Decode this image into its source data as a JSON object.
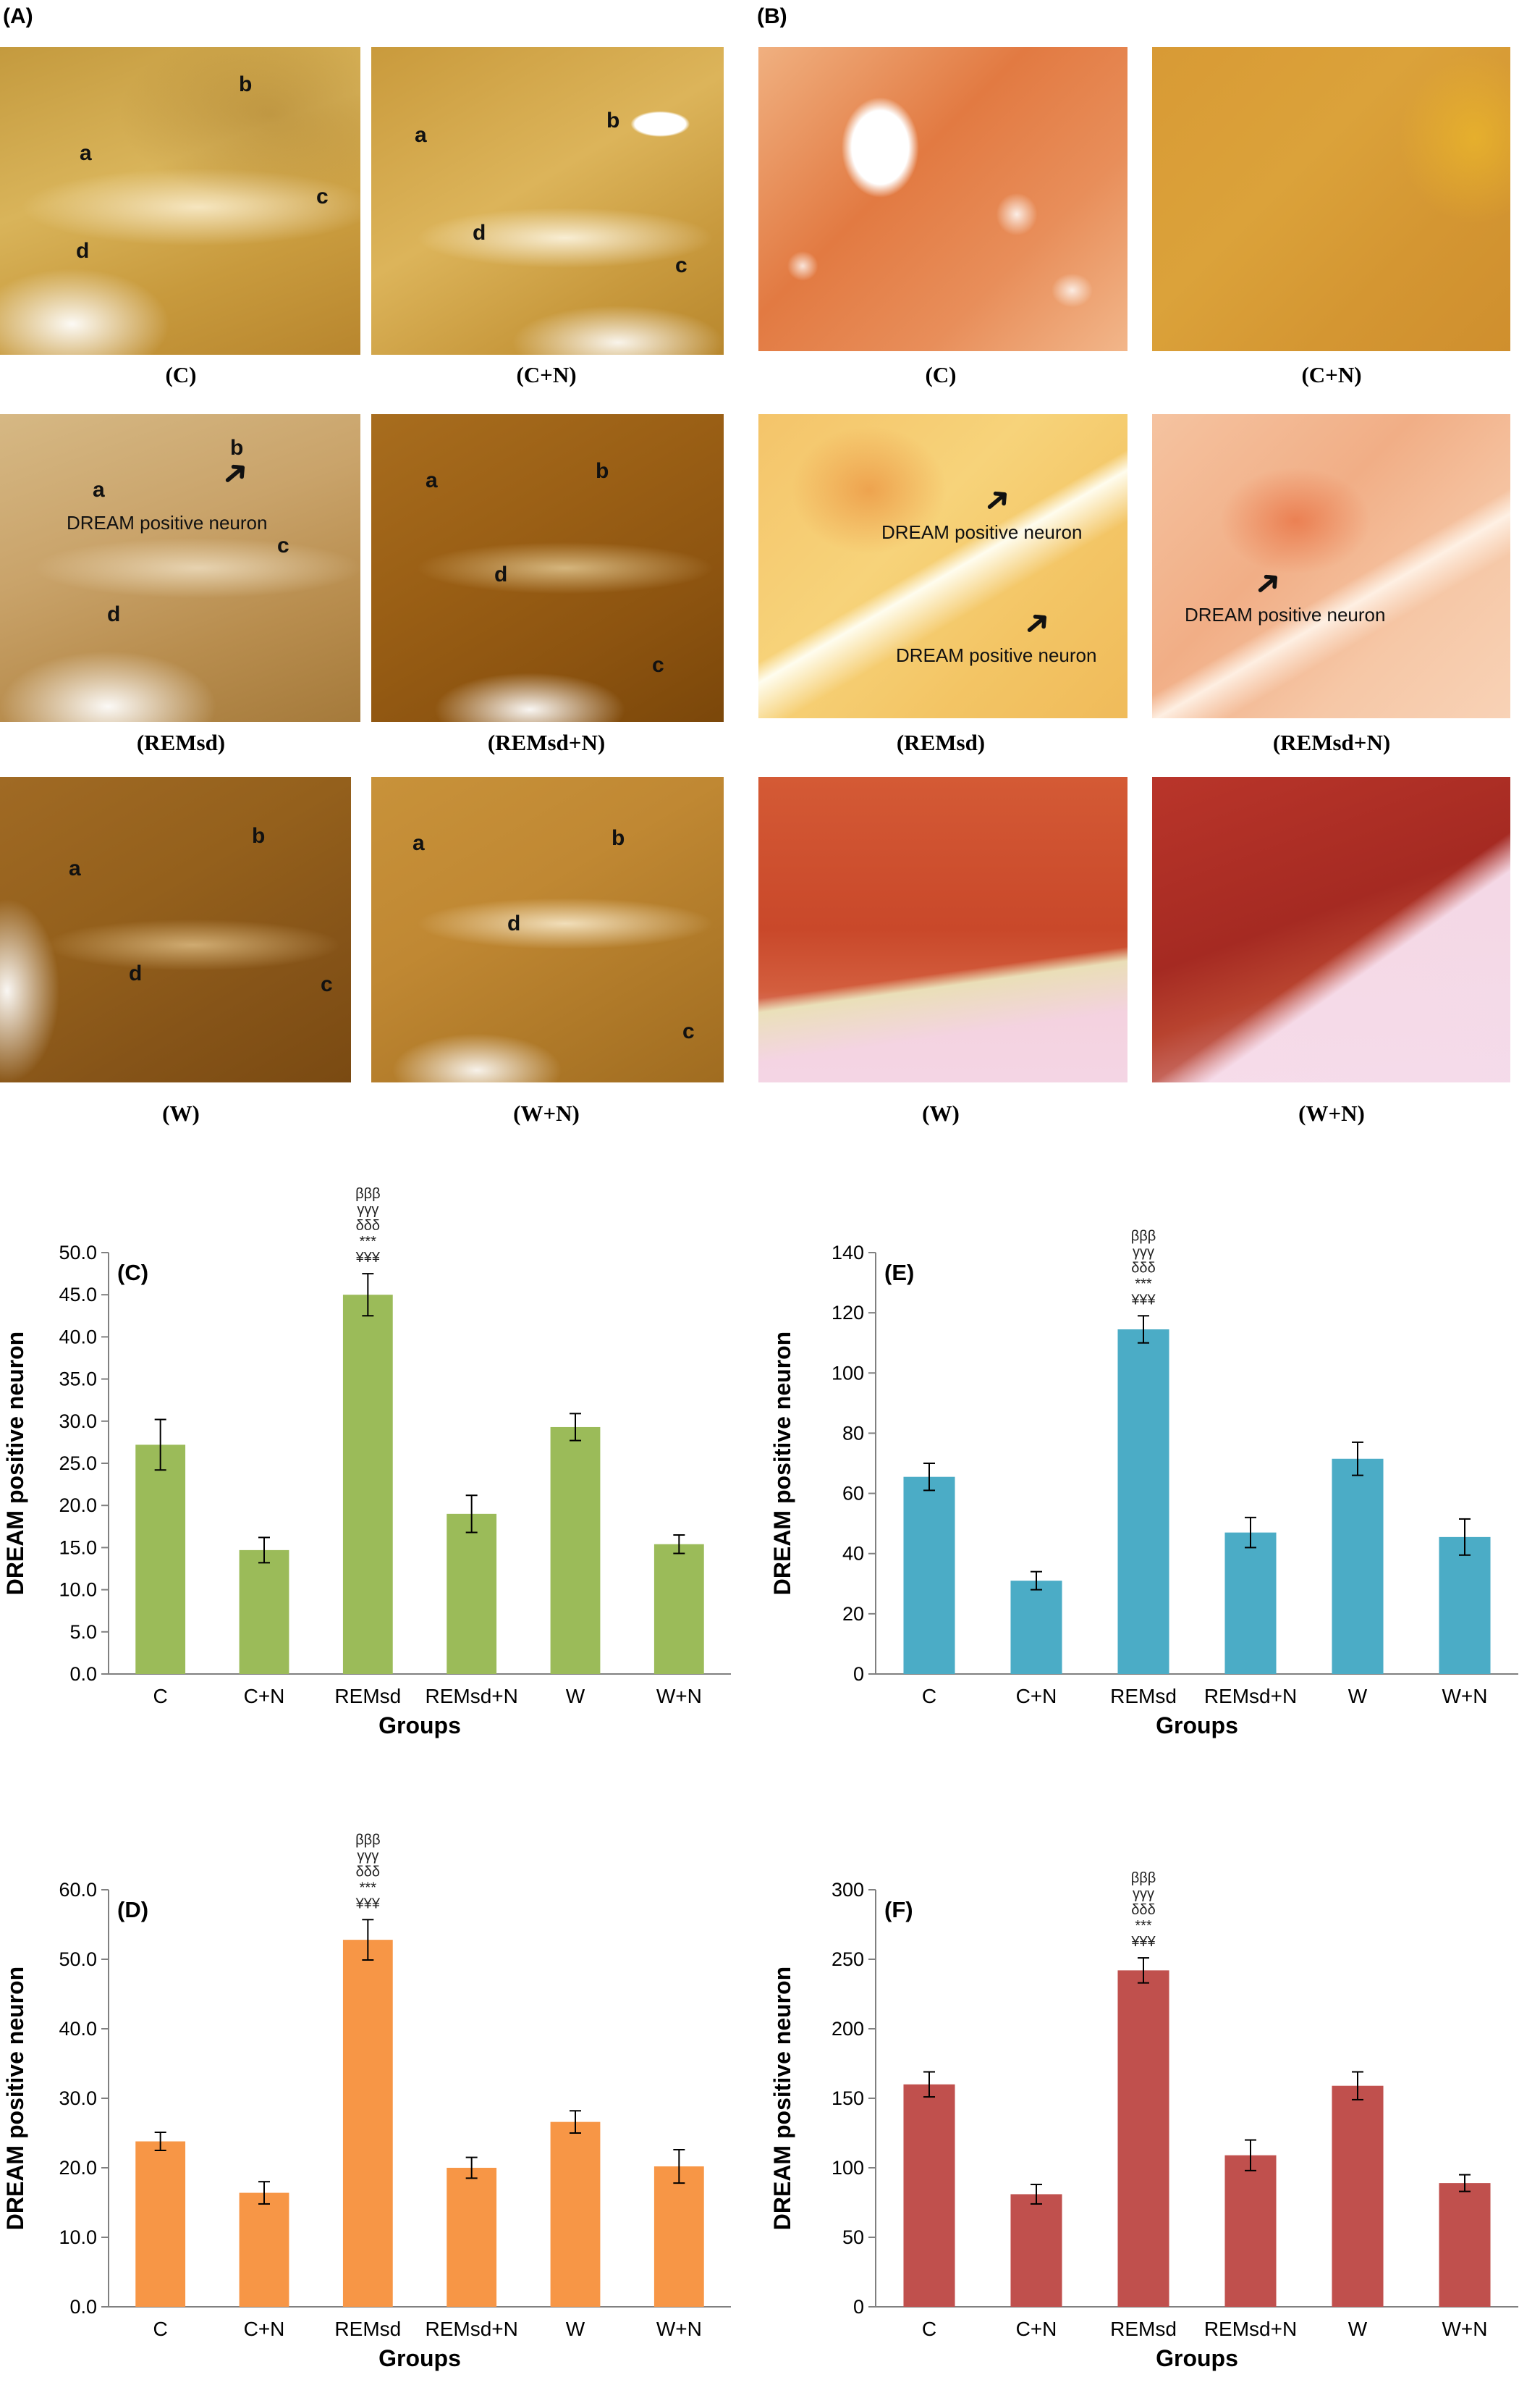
{
  "panel_labels": {
    "a": "(A)",
    "b": "(B)"
  },
  "captions": [
    "(C)",
    "(C+N)",
    "(REMsd)",
    "(REMsd+N)",
    "(W)",
    "(W+N)"
  ],
  "region_labels": {
    "a": "a",
    "b": "b",
    "c": "c",
    "d": "d"
  },
  "annotation": "DREAM positive neuron",
  "colors": {
    "green": "#9bbb59",
    "blue": "#4bacc6",
    "orange": "#f79646",
    "red": "#c0504d"
  },
  "chart_data": [
    {
      "type": "bar",
      "panel_label": "(C)",
      "categories": [
        "C",
        "C+N",
        "REMsd",
        "REMsd+N",
        "W",
        "W+N"
      ],
      "values": [
        27.2,
        14.7,
        45.0,
        19.0,
        29.3,
        15.4
      ],
      "errors": [
        3.0,
        1.5,
        2.5,
        2.2,
        1.6,
        1.1
      ],
      "ylabel": "DREAM positive neuron",
      "xlabel": "Groups",
      "ylim": [
        0,
        50
      ],
      "yticks": [
        "0.0",
        "5.0",
        "10.0",
        "15.0",
        "20.0",
        "25.0",
        "30.0",
        "35.0",
        "40.0",
        "45.0",
        "50.0"
      ],
      "significance": [
        "βββ",
        "γγγ",
        "δδδ",
        "***",
        "¥¥¥"
      ],
      "color": "#9bbb59"
    },
    {
      "type": "bar",
      "panel_label": "(E)",
      "categories": [
        "C",
        "C+N",
        "REMsd",
        "REMsd+N",
        "W",
        "W+N"
      ],
      "values": [
        65.5,
        31.0,
        114.5,
        47.0,
        71.5,
        45.5
      ],
      "errors": [
        4.5,
        3.0,
        4.5,
        5.0,
        5.5,
        6.0
      ],
      "ylabel": "DREAM positive neuron",
      "xlabel": "Groups",
      "ylim": [
        0,
        140
      ],
      "yticks": [
        "0",
        "20",
        "40",
        "60",
        "80",
        "100",
        "120",
        "140"
      ],
      "significance": [
        "βββ",
        "γγγ",
        "δδδ",
        "***",
        "¥¥¥"
      ],
      "color": "#4bacc6"
    },
    {
      "type": "bar",
      "panel_label": "(D)",
      "categories": [
        "C",
        "C+N",
        "REMsd",
        "REMsd+N",
        "W",
        "W+N"
      ],
      "values": [
        23.8,
        16.4,
        52.8,
        20.0,
        26.6,
        20.2
      ],
      "errors": [
        1.3,
        1.6,
        2.9,
        1.5,
        1.6,
        2.4
      ],
      "ylabel": "DREAM positive neuron",
      "xlabel": "Groups",
      "ylim": [
        0,
        60
      ],
      "yticks": [
        "0.0",
        "10.0",
        "20.0",
        "30.0",
        "40.0",
        "50.0",
        "60.0"
      ],
      "significance": [
        "βββ",
        "γγγ",
        "δδδ",
        "***",
        "¥¥¥"
      ],
      "color": "#f79646"
    },
    {
      "type": "bar",
      "panel_label": "(F)",
      "categories": [
        "C",
        "C+N",
        "REMsd",
        "REMsd+N",
        "W",
        "W+N"
      ],
      "values": [
        160,
        81,
        242,
        109,
        159,
        89
      ],
      "errors": [
        9,
        7,
        9,
        11,
        10,
        6
      ],
      "ylabel": "DREAM positive neuron",
      "xlabel": "Groups",
      "ylim": [
        0,
        300
      ],
      "yticks": [
        "0",
        "50",
        "100",
        "150",
        "200",
        "250",
        "300"
      ],
      "significance": [
        "βββ",
        "γγγ",
        "δδδ",
        "***",
        "¥¥¥"
      ],
      "color": "#c0504d"
    }
  ]
}
